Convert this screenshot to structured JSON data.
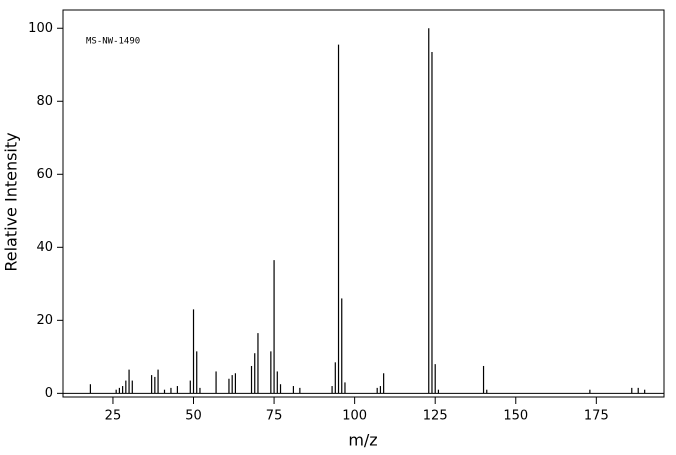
{
  "chart_data": {
    "type": "stem",
    "annotation": "MS-NW-1490",
    "x_label": "m/z",
    "y_label": "Relative Intensity",
    "color": "#000000",
    "x": [
      18,
      26,
      27,
      28,
      29,
      30,
      31,
      37,
      38,
      39,
      41,
      43,
      45,
      49,
      50,
      51,
      52,
      57,
      61,
      62,
      63,
      68,
      69,
      70,
      74,
      75,
      76,
      77,
      81,
      83,
      93,
      94,
      95,
      96,
      97,
      107,
      108,
      109,
      123,
      124,
      125,
      126,
      140,
      141,
      173,
      186,
      188,
      190
    ],
    "values": [
      2.5,
      1,
      1.5,
      2,
      3.5,
      6.5,
      3.5,
      5,
      4.5,
      6.5,
      1,
      1.5,
      2,
      3.5,
      23,
      11.5,
      1.5,
      6,
      4,
      5,
      5.5,
      7.5,
      11,
      16.5,
      11.5,
      36.5,
      6,
      2.5,
      2,
      1.5,
      2,
      8.5,
      95.5,
      26,
      3,
      1.5,
      2,
      5.5,
      100,
      93.5,
      8,
      1,
      7.5,
      1,
      1,
      1.5,
      1.5,
      1
    ],
    "xlim": [
      9.5,
      196
    ],
    "ylim": [
      -1,
      105
    ],
    "xticks": [
      25,
      50,
      75,
      100,
      125,
      150,
      175
    ],
    "yticks": [
      0,
      20,
      40,
      60,
      80,
      100
    ]
  }
}
